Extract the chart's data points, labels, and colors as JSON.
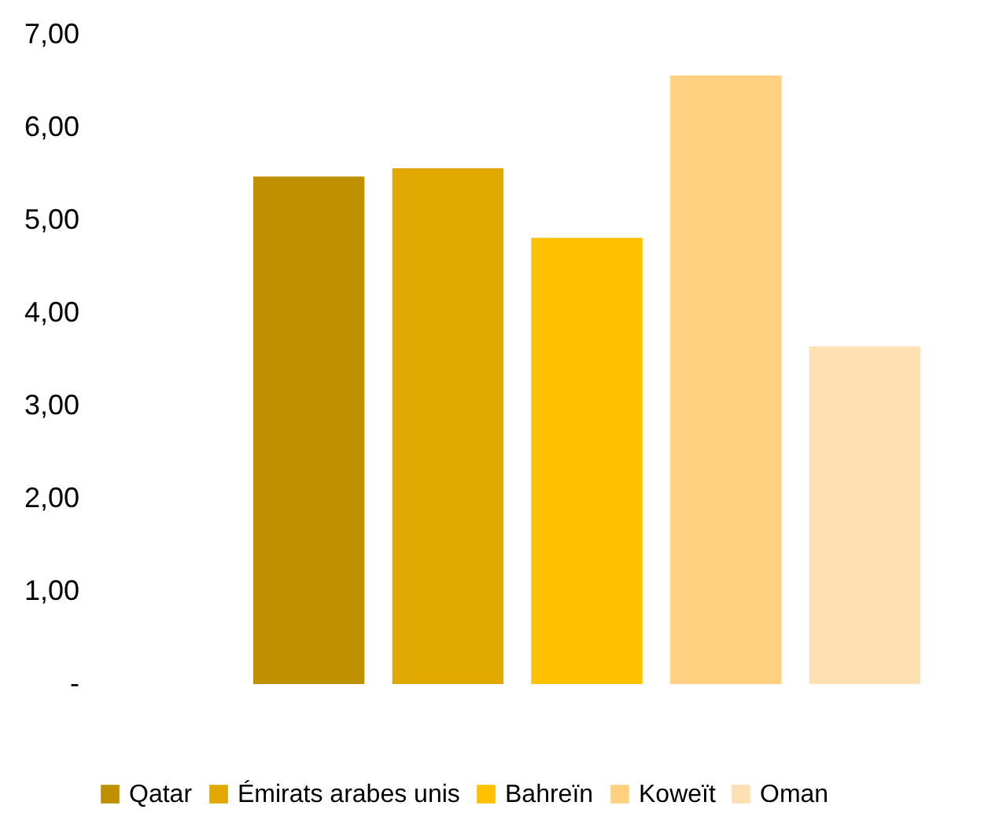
{
  "chart_data": {
    "type": "bar",
    "categories": [
      null
    ],
    "series": [
      {
        "name": "Qatar",
        "color": "#bf9000",
        "values": [
          5.47
        ]
      },
      {
        "name": "Émirats arabes unis",
        "color": "#e0a800",
        "values": [
          5.56
        ]
      },
      {
        "name": "Bahreïn",
        "color": "#ffc000",
        "values": [
          4.81
        ]
      },
      {
        "name": "Koweït",
        "color": "#ffd180",
        "values": [
          6.56
        ]
      },
      {
        "name": "Oman",
        "color": "#ffe0b3",
        "values": [
          3.64
        ]
      }
    ],
    "ylim": [
      0,
      7
    ],
    "yticks": [
      {
        "value": 0,
        "label": "-"
      },
      {
        "value": 1,
        "label": "1,00"
      },
      {
        "value": 2,
        "label": "2,00"
      },
      {
        "value": 3,
        "label": "3,00"
      },
      {
        "value": 4,
        "label": "4,00"
      },
      {
        "value": 5,
        "label": "5,00"
      },
      {
        "value": 6,
        "label": "6,00"
      },
      {
        "value": 7,
        "label": "7,00"
      }
    ],
    "tick_labels": "y",
    "grid": false,
    "legend": "bottom"
  }
}
